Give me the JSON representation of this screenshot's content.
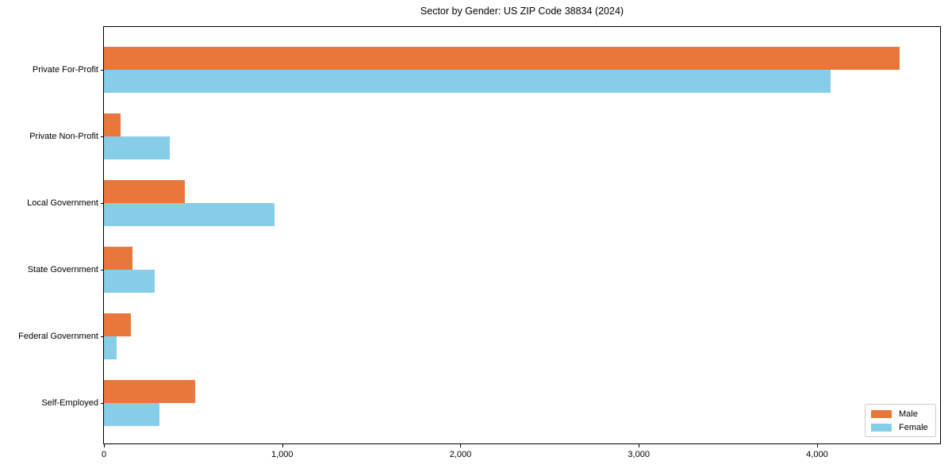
{
  "figure": {
    "background": "#ffffff",
    "axis_color": "#000000"
  },
  "chart_data": {
    "type": "bar",
    "orientation": "horizontal",
    "title": "Sector by Gender: US ZIP Code 38834 (2024)",
    "categories": [
      "Private For-Profit",
      "Private Non-Profit",
      "Local Government",
      "State Government",
      "Federal Government",
      "Self-Employed"
    ],
    "series": [
      {
        "name": "Male",
        "color": "#e8773b",
        "values": [
          4465,
          95,
          455,
          160,
          150,
          510
        ]
      },
      {
        "name": "Female",
        "color": "#86cde8",
        "values": [
          4075,
          370,
          955,
          285,
          70,
          310
        ]
      }
    ],
    "xlabel": "",
    "ylabel": "",
    "xlim": [
      0,
      4690
    ],
    "xticks": [
      {
        "value": 0,
        "label": "0"
      },
      {
        "value": 1000,
        "label": "1,000"
      },
      {
        "value": 2000,
        "label": "2,000"
      },
      {
        "value": 3000,
        "label": "3,000"
      },
      {
        "value": 4000,
        "label": "4,000"
      }
    ],
    "grid": false,
    "legend": {
      "position": "lower right"
    }
  }
}
